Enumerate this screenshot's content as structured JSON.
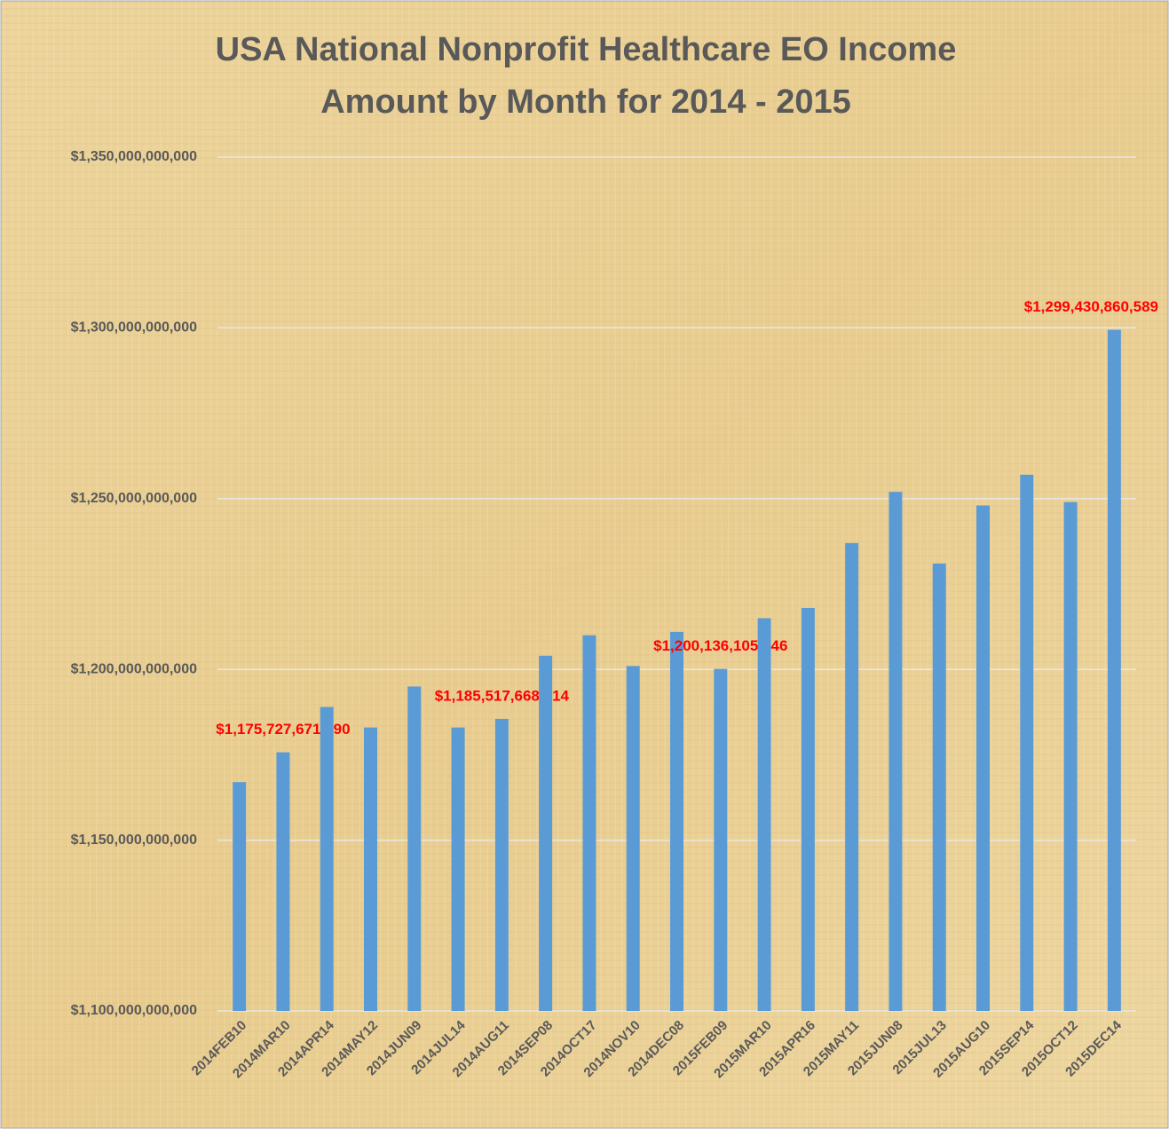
{
  "chart_data": {
    "type": "bar",
    "title": "USA National Nonprofit Healthcare EO Income",
    "subtitle": "Amount by Month for 2014 - 2015",
    "categories": [
      "2014FEB10",
      "2014MAR10",
      "2014APR14",
      "2014MAY12",
      "2014JUN09",
      "2014JUL14",
      "2014AUG11",
      "2014SEP08",
      "2014OCT17",
      "2014NOV10",
      "2014DEC08",
      "2015FEB09",
      "2015MAR10",
      "2015APR16",
      "2015MAY11",
      "2015JUN08",
      "2015JUL13",
      "2015AUG10",
      "2015SEP14",
      "2015OCT12",
      "2015DEC14"
    ],
    "values": [
      1167000000000,
      1175727671290,
      1189000000000,
      1183000000000,
      1195000000000,
      1183000000000,
      1185517668914,
      1204000000000,
      1210000000000,
      1201000000000,
      1211000000000,
      1200136105146,
      1215000000000,
      1218000000000,
      1237000000000,
      1252000000000,
      1231000000000,
      1248000000000,
      1257000000000,
      1249000000000,
      1299430860589
    ],
    "value_labels": [
      null,
      "$1,175,727,671,290",
      null,
      null,
      null,
      null,
      "$1,185,517,668,914",
      null,
      null,
      null,
      null,
      "$1,200,136,105,146",
      null,
      null,
      null,
      null,
      null,
      null,
      null,
      null,
      "$1,299,430,860,589"
    ],
    "color": "#5b9bd5",
    "label_color": "#ff0000",
    "ylim": [
      1100000000000,
      1350000000000
    ],
    "yticks": [
      {
        "value": 1100000000000,
        "label": "$1,100,000,000,000"
      },
      {
        "value": 1150000000000,
        "label": "$1,150,000,000,000"
      },
      {
        "value": 1200000000000,
        "label": "$1,200,000,000,000"
      },
      {
        "value": 1250000000000,
        "label": "$1,250,000,000,000"
      },
      {
        "value": 1300000000000,
        "label": "$1,300,000,000,000"
      },
      {
        "value": 1350000000000,
        "label": "$1,350,000,000,000"
      }
    ],
    "grid": true
  }
}
